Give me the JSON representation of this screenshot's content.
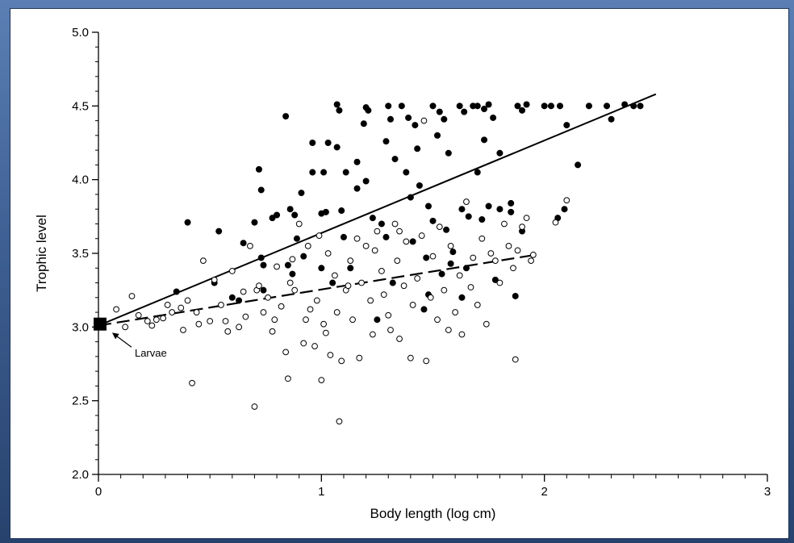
{
  "chart_data": {
    "type": "scatter",
    "title": "",
    "xlabel": "Body length (log cm)",
    "ylabel": "Trophic level",
    "xlim": [
      0,
      3
    ],
    "ylim": [
      2.0,
      5.0
    ],
    "x_ticks": [
      0,
      1,
      2,
      3
    ],
    "y_ticks": [
      2.0,
      2.5,
      3.0,
      3.5,
      4.0,
      4.5,
      5.0
    ],
    "x_tick_labels": [
      "0",
      "1",
      "2",
      "3"
    ],
    "y_tick_labels": [
      "2.0",
      "2.5",
      "3.0",
      "3.5",
      "4.0",
      "4.5",
      "5.0"
    ],
    "grid": false,
    "legend": "none",
    "series": [
      {
        "marker": "filled-circle",
        "color": "#000000",
        "points": [
          [
            0.4,
            3.71
          ],
          [
            0.35,
            3.24
          ],
          [
            0.54,
            3.65
          ],
          [
            0.52,
            3.3
          ],
          [
            0.6,
            3.2
          ],
          [
            0.63,
            3.18
          ],
          [
            0.65,
            3.57
          ],
          [
            0.72,
            4.07
          ],
          [
            0.73,
            3.93
          ],
          [
            0.7,
            3.71
          ],
          [
            0.73,
            3.47
          ],
          [
            0.74,
            3.42
          ],
          [
            0.78,
            3.74
          ],
          [
            0.8,
            3.76
          ],
          [
            0.74,
            3.25
          ],
          [
            0.84,
            4.43
          ],
          [
            0.86,
            3.8
          ],
          [
            0.88,
            3.76
          ],
          [
            0.91,
            3.91
          ],
          [
            0.89,
            3.6
          ],
          [
            0.85,
            3.42
          ],
          [
            0.87,
            3.36
          ],
          [
            0.92,
            3.48
          ],
          [
            0.96,
            4.25
          ],
          [
            0.96,
            4.05
          ],
          [
            1.01,
            4.05
          ],
          [
            1.03,
            4.25
          ],
          [
            1.0,
            3.77
          ],
          [
            1.02,
            3.78
          ],
          [
            1.0,
            3.4
          ],
          [
            1.05,
            3.3
          ],
          [
            1.07,
            4.51
          ],
          [
            1.08,
            4.47
          ],
          [
            1.11,
            4.05
          ],
          [
            1.07,
            4.22
          ],
          [
            1.09,
            3.79
          ],
          [
            1.1,
            3.61
          ],
          [
            1.13,
            3.4
          ],
          [
            1.2,
            4.49
          ],
          [
            1.21,
            4.47
          ],
          [
            1.19,
            4.38
          ],
          [
            1.16,
            4.12
          ],
          [
            1.2,
            3.99
          ],
          [
            1.16,
            3.94
          ],
          [
            1.23,
            3.74
          ],
          [
            1.3,
            4.5
          ],
          [
            1.31,
            4.41
          ],
          [
            1.29,
            4.26
          ],
          [
            1.33,
            4.14
          ],
          [
            1.27,
            3.7
          ],
          [
            1.29,
            3.61
          ],
          [
            1.36,
            4.5
          ],
          [
            1.39,
            4.42
          ],
          [
            1.42,
            4.37
          ],
          [
            1.43,
            4.21
          ],
          [
            1.38,
            4.05
          ],
          [
            1.44,
            3.96
          ],
          [
            1.4,
            3.88
          ],
          [
            1.41,
            3.58
          ],
          [
            1.47,
            3.47
          ],
          [
            1.5,
            4.5
          ],
          [
            1.53,
            4.46
          ],
          [
            1.55,
            4.41
          ],
          [
            1.52,
            4.3
          ],
          [
            1.57,
            4.18
          ],
          [
            1.48,
            3.82
          ],
          [
            1.5,
            3.72
          ],
          [
            1.56,
            3.66
          ],
          [
            1.59,
            3.51
          ],
          [
            1.62,
            4.5
          ],
          [
            1.64,
            4.46
          ],
          [
            1.68,
            4.5
          ],
          [
            1.7,
            4.5
          ],
          [
            1.73,
            4.48
          ],
          [
            1.75,
            4.51
          ],
          [
            1.77,
            4.42
          ],
          [
            1.73,
            4.27
          ],
          [
            1.8,
            4.18
          ],
          [
            1.7,
            4.05
          ],
          [
            1.63,
            3.8
          ],
          [
            1.66,
            3.75
          ],
          [
            1.75,
            3.82
          ],
          [
            1.8,
            3.8
          ],
          [
            1.85,
            3.84
          ],
          [
            1.88,
            4.5
          ],
          [
            1.9,
            4.47
          ],
          [
            1.92,
            4.51
          ],
          [
            1.85,
            3.78
          ],
          [
            1.9,
            3.65
          ],
          [
            1.72,
            3.73
          ],
          [
            1.78,
            3.32
          ],
          [
            1.87,
            3.21
          ],
          [
            1.63,
            3.2
          ],
          [
            1.65,
            3.4
          ],
          [
            1.58,
            3.43
          ],
          [
            1.54,
            3.36
          ],
          [
            1.48,
            3.22
          ],
          [
            1.46,
            3.12
          ],
          [
            1.32,
            3.3
          ],
          [
            1.25,
            3.05
          ],
          [
            2.0,
            4.5
          ],
          [
            2.03,
            4.5
          ],
          [
            2.07,
            4.5
          ],
          [
            2.1,
            4.37
          ],
          [
            2.15,
            4.1
          ],
          [
            2.06,
            3.74
          ],
          [
            2.09,
            3.8
          ],
          [
            2.2,
            4.5
          ],
          [
            2.28,
            4.5
          ],
          [
            2.3,
            4.41
          ],
          [
            2.36,
            4.51
          ],
          [
            2.4,
            4.5
          ],
          [
            2.43,
            4.5
          ]
        ]
      },
      {
        "marker": "open-circle",
        "color": "#000000",
        "points": [
          [
            0.08,
            3.12
          ],
          [
            0.15,
            3.21
          ],
          [
            0.22,
            3.04
          ],
          [
            0.24,
            3.01
          ],
          [
            0.29,
            3.06
          ],
          [
            0.33,
            3.1
          ],
          [
            0.37,
            3.13
          ],
          [
            0.4,
            3.18
          ],
          [
            0.42,
            2.62
          ],
          [
            0.44,
            3.1
          ],
          [
            0.47,
            3.45
          ],
          [
            0.5,
            3.04
          ],
          [
            0.55,
            3.15
          ],
          [
            0.57,
            3.04
          ],
          [
            0.6,
            3.38
          ],
          [
            0.63,
            3.0
          ],
          [
            0.66,
            3.07
          ],
          [
            0.68,
            3.55
          ],
          [
            0.7,
            2.46
          ],
          [
            0.71,
            3.25
          ],
          [
            0.74,
            3.1
          ],
          [
            0.76,
            3.2
          ],
          [
            0.78,
            2.97
          ],
          [
            0.8,
            3.41
          ],
          [
            0.82,
            3.14
          ],
          [
            0.84,
            2.83
          ],
          [
            0.85,
            2.65
          ],
          [
            0.86,
            3.3
          ],
          [
            0.88,
            3.25
          ],
          [
            0.9,
            3.7
          ],
          [
            0.92,
            2.89
          ],
          [
            0.94,
            3.55
          ],
          [
            0.95,
            3.12
          ],
          [
            0.97,
            2.87
          ],
          [
            0.99,
            3.62
          ],
          [
            1.0,
            2.64
          ],
          [
            1.01,
            3.02
          ],
          [
            1.02,
            2.96
          ],
          [
            1.03,
            3.5
          ],
          [
            1.04,
            2.81
          ],
          [
            1.06,
            3.35
          ],
          [
            1.07,
            3.1
          ],
          [
            1.08,
            2.36
          ],
          [
            1.09,
            2.77
          ],
          [
            1.11,
            3.25
          ],
          [
            1.13,
            3.45
          ],
          [
            1.14,
            3.05
          ],
          [
            1.16,
            3.6
          ],
          [
            1.17,
            2.79
          ],
          [
            1.18,
            3.3
          ],
          [
            1.2,
            3.55
          ],
          [
            1.22,
            3.18
          ],
          [
            1.23,
            2.95
          ],
          [
            1.25,
            3.65
          ],
          [
            1.27,
            3.38
          ],
          [
            1.28,
            3.22
          ],
          [
            1.3,
            3.08
          ],
          [
            1.31,
            2.98
          ],
          [
            1.33,
            3.7
          ],
          [
            1.34,
            3.45
          ],
          [
            1.35,
            2.92
          ],
          [
            1.37,
            3.28
          ],
          [
            1.38,
            3.58
          ],
          [
            1.4,
            2.79
          ],
          [
            1.41,
            3.15
          ],
          [
            1.43,
            3.33
          ],
          [
            1.45,
            3.62
          ],
          [
            1.46,
            4.4
          ],
          [
            1.47,
            2.77
          ],
          [
            1.49,
            3.2
          ],
          [
            1.5,
            3.48
          ],
          [
            1.52,
            3.05
          ],
          [
            1.53,
            3.68
          ],
          [
            1.55,
            3.25
          ],
          [
            1.57,
            2.98
          ],
          [
            1.58,
            3.55
          ],
          [
            1.6,
            3.1
          ],
          [
            1.62,
            3.35
          ],
          [
            1.63,
            2.95
          ],
          [
            1.65,
            3.85
          ],
          [
            1.67,
            3.27
          ],
          [
            1.68,
            3.47
          ],
          [
            1.7,
            3.15
          ],
          [
            1.72,
            3.6
          ],
          [
            1.74,
            3.02
          ],
          [
            1.76,
            3.5
          ],
          [
            1.78,
            3.45
          ],
          [
            1.8,
            3.3
          ],
          [
            1.82,
            3.7
          ],
          [
            1.84,
            3.55
          ],
          [
            1.86,
            3.4
          ],
          [
            1.87,
            2.78
          ],
          [
            1.88,
            3.52
          ],
          [
            1.9,
            3.68
          ],
          [
            1.92,
            3.74
          ],
          [
            1.95,
            3.49
          ],
          [
            2.05,
            3.71
          ],
          [
            2.1,
            3.86
          ],
          [
            1.94,
            3.45
          ],
          [
            1.35,
            3.65
          ],
          [
            1.24,
            3.52
          ],
          [
            1.12,
            3.28
          ],
          [
            0.98,
            3.18
          ],
          [
            0.93,
            3.05
          ],
          [
            0.87,
            3.46
          ],
          [
            0.79,
            3.05
          ],
          [
            0.72,
            3.28
          ],
          [
            0.65,
            3.24
          ],
          [
            0.58,
            2.97
          ],
          [
            0.52,
            3.32
          ],
          [
            0.45,
            3.02
          ],
          [
            0.38,
            2.98
          ],
          [
            0.31,
            3.15
          ],
          [
            0.26,
            3.05
          ],
          [
            0.18,
            3.08
          ],
          [
            0.12,
            3.0
          ]
        ]
      }
    ],
    "regression_lines": [
      {
        "style": "solid",
        "x": [
          0,
          2.5
        ],
        "y": [
          3.01,
          4.58
        ]
      },
      {
        "style": "dashed",
        "x": [
          0,
          1.96
        ],
        "y": [
          3.01,
          3.49
        ]
      }
    ],
    "special_points": [
      {
        "marker": "filled-square",
        "x": 0,
        "y": 3.02
      }
    ],
    "annotations": [
      {
        "text": "Larvae",
        "point_x": 0.05,
        "point_y": 2.98,
        "label_x": 0.17,
        "label_y": 2.82
      }
    ]
  }
}
